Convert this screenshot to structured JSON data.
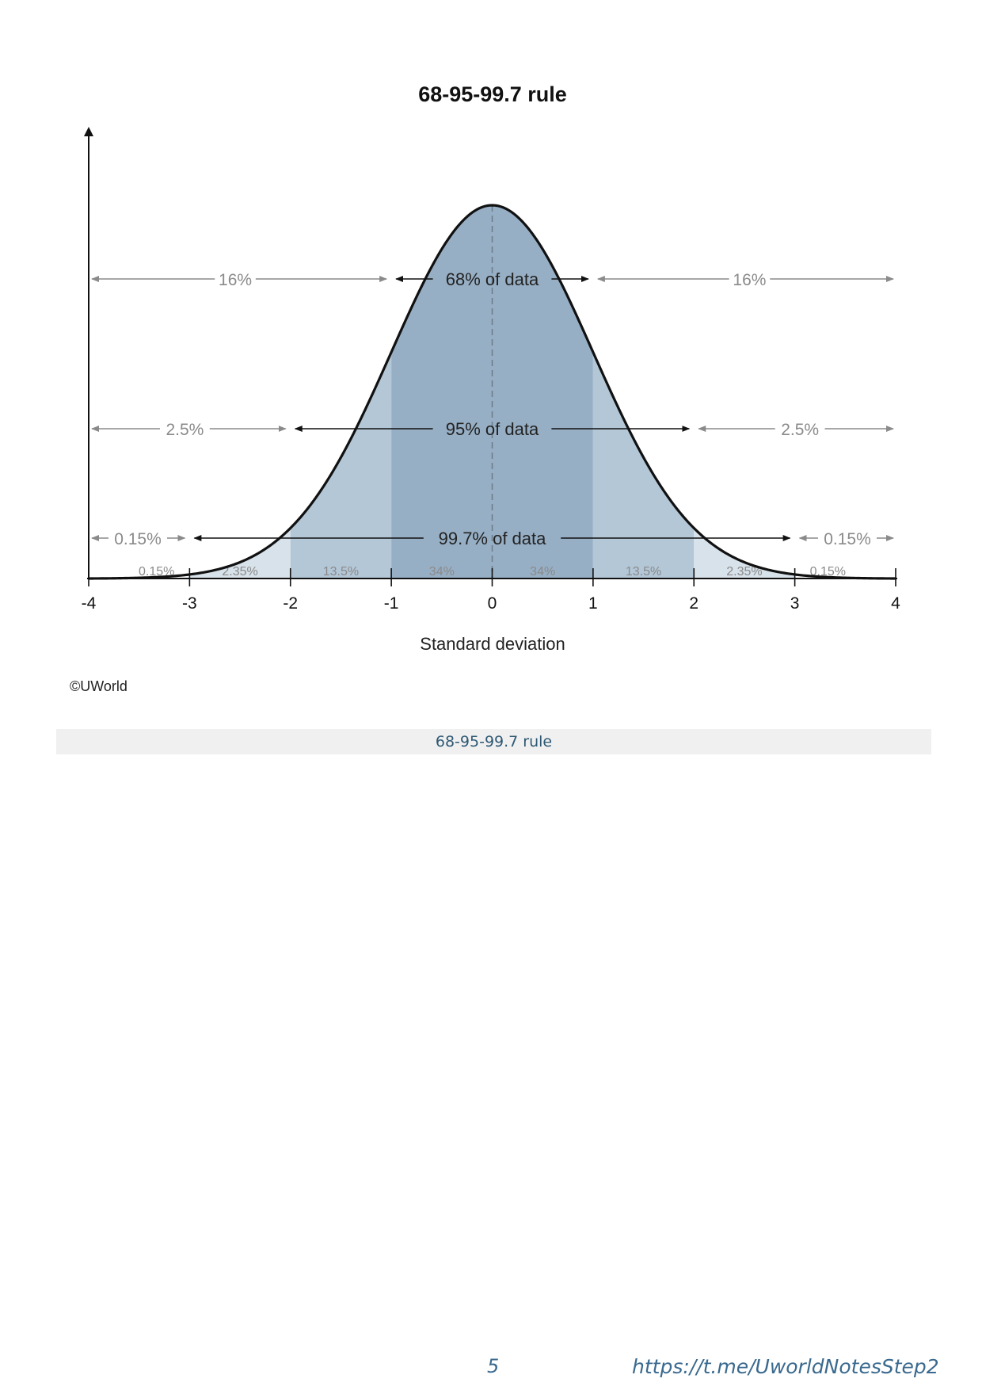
{
  "chart_data": {
    "type": "area",
    "title": "68-95-99.7 rule",
    "xlabel": "Standard deviation",
    "ylabel": "",
    "xlim": [
      -4,
      4
    ],
    "x_ticks": [
      "-4",
      "-3",
      "-2",
      "-1",
      "0",
      "1",
      "2",
      "3",
      "4"
    ],
    "curve": "standard normal distribution",
    "bands": [
      {
        "from": -4,
        "to": -3,
        "label": "0.15%",
        "color": "#ffffff"
      },
      {
        "from": -3,
        "to": -2,
        "label": "2.35%",
        "color": "#d8e2ea"
      },
      {
        "from": -2,
        "to": -1,
        "label": "13.5%",
        "color": "#b3c7d7"
      },
      {
        "from": -1,
        "to": 0,
        "label": "34%",
        "color": "#97afc5"
      },
      {
        "from": 0,
        "to": 1,
        "label": "34%",
        "color": "#97afc5"
      },
      {
        "from": 1,
        "to": 2,
        "label": "13.5%",
        "color": "#b3c7d7"
      },
      {
        "from": 2,
        "to": 3,
        "label": "2.35%",
        "color": "#d8e2ea"
      },
      {
        "from": 3,
        "to": 4,
        "label": "0.15%",
        "color": "#ffffff"
      }
    ],
    "ranges": [
      {
        "sigma": 1,
        "label": "68% of data",
        "tail_label": "16%"
      },
      {
        "sigma": 2,
        "label": "95% of data",
        "tail_label": "2.5%"
      },
      {
        "sigma": 3,
        "label": "99.7% of data",
        "tail_label": "0.15%"
      }
    ],
    "grid": false,
    "legend": "none"
  },
  "credit": "©UWorld",
  "caption": "68-95-99.7 rule",
  "footer": {
    "page_number": "5",
    "link": "https://t.me/UworldNotesStep2"
  }
}
